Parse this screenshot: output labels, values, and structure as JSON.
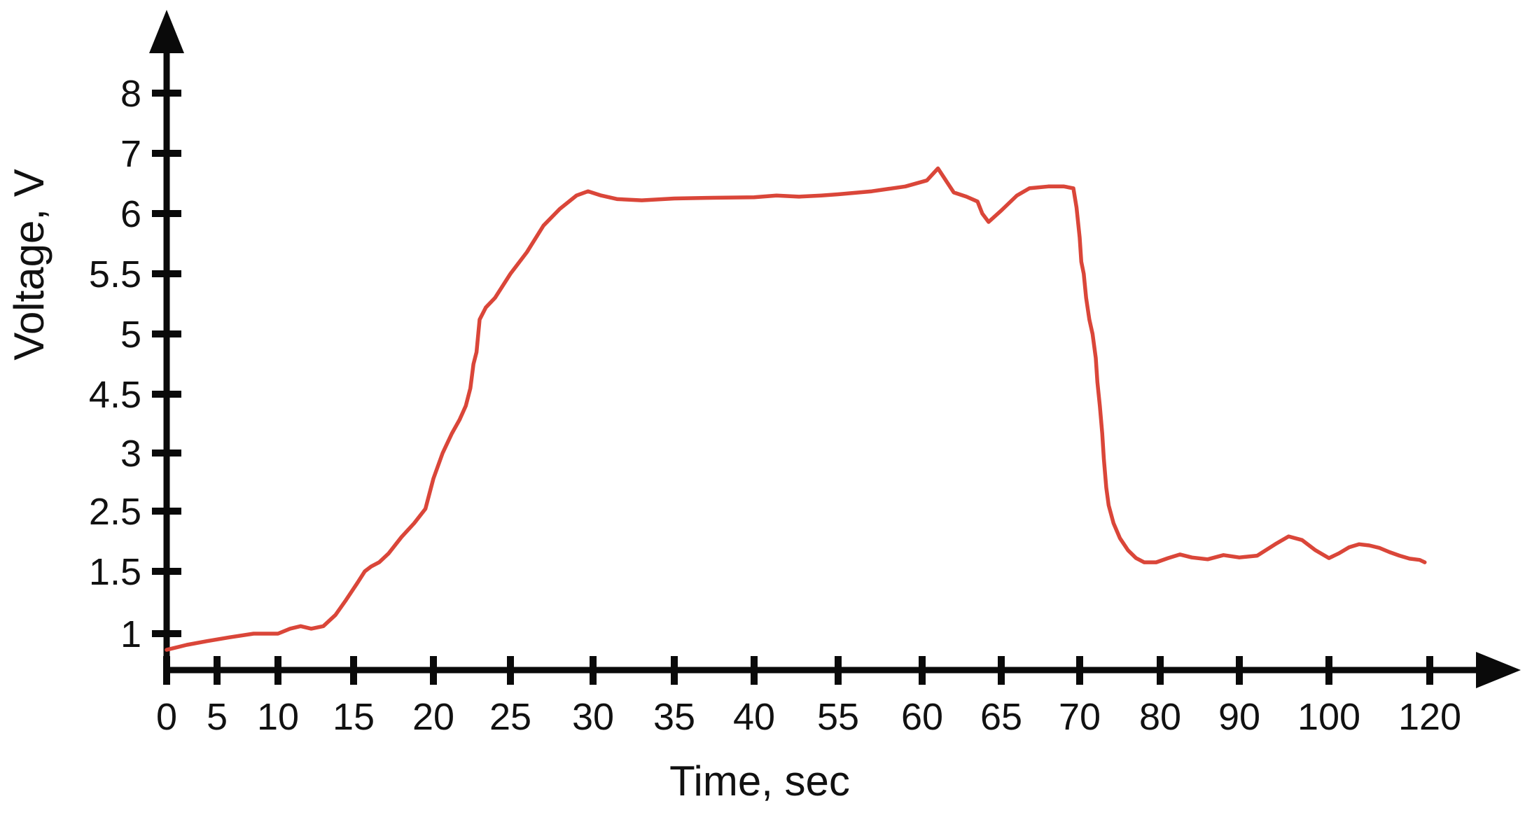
{
  "chart_data": {
    "type": "line",
    "title": "",
    "xlabel": "Time, sec",
    "ylabel": "Voltage, V",
    "x_tick_labels": [
      "0",
      "5",
      "10",
      "15",
      "20",
      "25",
      "30",
      "35",
      "40",
      "55",
      "60",
      "65",
      "70",
      "80",
      "90",
      "100",
      "120"
    ],
    "y_tick_labels_top_to_bottom": [
      "8",
      "7",
      "6",
      "5.5",
      "5",
      "4.5",
      "3",
      "2.5",
      "1.5",
      "1"
    ],
    "axis_note": "tick marks evenly spaced; label values are non-linear (x skips 45-50 and 75,85,95,110; y compresses 3-4.5)",
    "grid": false,
    "legend": "none",
    "line_color": "#da4639",
    "axis_color": "#0a0a0a",
    "series": [
      {
        "name": "voltage",
        "points": [
          [
            0,
            0.87
          ],
          [
            2,
            0.91
          ],
          [
            4,
            0.94
          ],
          [
            6,
            0.97
          ],
          [
            8,
            1.0
          ],
          [
            10,
            1.0
          ],
          [
            10.8,
            1.04
          ],
          [
            11.5,
            1.06
          ],
          [
            12.2,
            1.04
          ],
          [
            13,
            1.06
          ],
          [
            13.8,
            1.15
          ],
          [
            14.5,
            1.27
          ],
          [
            15.2,
            1.4
          ],
          [
            15.7,
            1.5
          ],
          [
            16.1,
            1.58
          ],
          [
            16.6,
            1.65
          ],
          [
            17.2,
            1.8
          ],
          [
            18,
            2.07
          ],
          [
            18.8,
            2.3
          ],
          [
            19.5,
            2.52
          ],
          [
            20,
            2.78
          ],
          [
            20.6,
            3.0
          ],
          [
            21.2,
            3.5
          ],
          [
            21.7,
            3.85
          ],
          [
            22.1,
            4.2
          ],
          [
            22.4,
            4.55
          ],
          [
            22.6,
            4.75
          ],
          [
            22.8,
            4.85
          ],
          [
            23,
            5.12
          ],
          [
            23.4,
            5.22
          ],
          [
            24,
            5.3
          ],
          [
            25,
            5.5
          ],
          [
            26,
            5.68
          ],
          [
            27,
            5.9
          ],
          [
            28,
            6.08
          ],
          [
            29,
            6.3
          ],
          [
            29.7,
            6.37
          ],
          [
            30.5,
            6.3
          ],
          [
            31.5,
            6.24
          ],
          [
            33,
            6.22
          ],
          [
            35,
            6.25
          ],
          [
            37,
            6.26
          ],
          [
            40,
            6.27
          ],
          [
            44,
            6.3
          ],
          [
            48,
            6.28
          ],
          [
            52,
            6.3
          ],
          [
            55,
            6.32
          ],
          [
            57,
            6.37
          ],
          [
            59,
            6.45
          ],
          [
            60.3,
            6.55
          ],
          [
            61,
            6.75
          ],
          [
            61.5,
            6.55
          ],
          [
            62,
            6.35
          ],
          [
            62.8,
            6.28
          ],
          [
            63.5,
            6.2
          ],
          [
            63.8,
            6.0
          ],
          [
            64.2,
            5.93
          ],
          [
            65,
            6.05
          ],
          [
            66,
            6.3
          ],
          [
            66.8,
            6.42
          ],
          [
            68,
            6.45
          ],
          [
            69,
            6.45
          ],
          [
            69.6,
            6.42
          ],
          [
            69.8,
            6.1
          ],
          [
            70,
            5.8
          ],
          [
            70.2,
            5.6
          ],
          [
            70.5,
            5.5
          ],
          [
            70.8,
            5.3
          ],
          [
            71.2,
            5.12
          ],
          [
            71.6,
            5.0
          ],
          [
            72,
            4.8
          ],
          [
            72.2,
            4.6
          ],
          [
            72.5,
            4.2
          ],
          [
            72.8,
            3.5
          ],
          [
            73,
            2.95
          ],
          [
            73.3,
            2.7
          ],
          [
            73.6,
            2.55
          ],
          [
            74.2,
            2.3
          ],
          [
            75,
            2.05
          ],
          [
            76,
            1.85
          ],
          [
            77,
            1.72
          ],
          [
            78,
            1.65
          ],
          [
            79.5,
            1.65
          ],
          [
            81,
            1.72
          ],
          [
            82.5,
            1.78
          ],
          [
            84,
            1.73
          ],
          [
            86,
            1.7
          ],
          [
            88,
            1.77
          ],
          [
            90,
            1.73
          ],
          [
            92,
            1.76
          ],
          [
            94,
            1.95
          ],
          [
            95.5,
            2.08
          ],
          [
            97,
            2.02
          ],
          [
            98.5,
            1.85
          ],
          [
            100,
            1.72
          ],
          [
            102,
            1.8
          ],
          [
            104,
            1.9
          ],
          [
            106,
            1.95
          ],
          [
            108,
            1.93
          ],
          [
            110,
            1.89
          ],
          [
            112,
            1.82
          ],
          [
            114,
            1.76
          ],
          [
            116,
            1.71
          ],
          [
            118,
            1.69
          ],
          [
            119,
            1.65
          ]
        ]
      }
    ]
  }
}
